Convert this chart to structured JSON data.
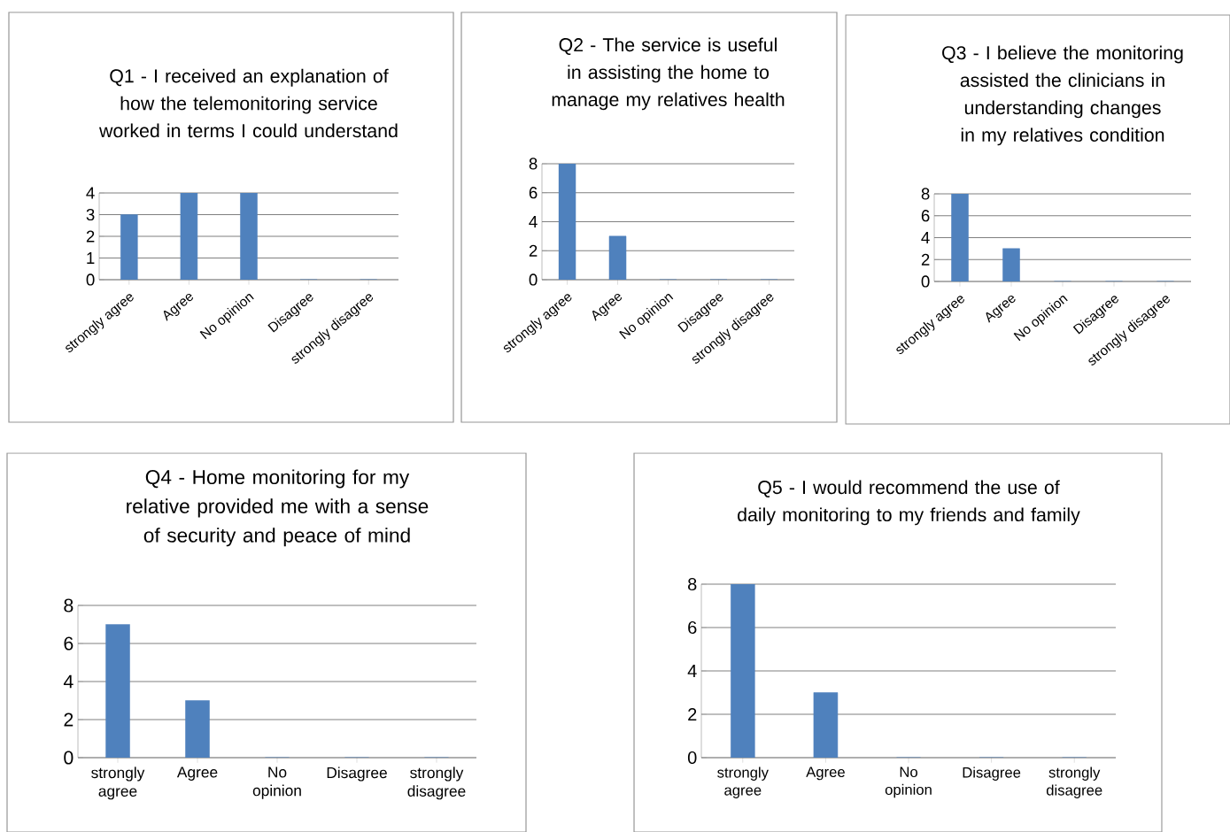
{
  "chart_data": [
    {
      "type": "bar",
      "title": "Q1 - I received an explanation of how the telemonitoring service worked in terms I could understand",
      "categories": [
        "strongly agree",
        "Agree",
        "No opinion",
        "Disagree",
        "strongly disagree"
      ],
      "values": [
        3,
        4,
        4,
        0,
        0
      ],
      "color": "#4f81bd",
      "ylim": [
        0,
        4
      ],
      "yticks": [
        0,
        1,
        2,
        3,
        4
      ],
      "grid": "y"
    },
    {
      "type": "bar",
      "title": "Q2 - The service is useful in assisting the home to manage my relatives health",
      "categories": [
        "strongly agree",
        "Agree",
        "No opinion",
        "Disagree",
        "strongly disagree"
      ],
      "values": [
        8,
        3,
        0,
        0,
        0
      ],
      "color": "#4f81bd",
      "ylim": [
        0,
        8
      ],
      "yticks": [
        0,
        2,
        4,
        6,
        8
      ],
      "grid": "y"
    },
    {
      "type": "bar",
      "title": "Q3 - I believe the monitoring assisted the clinicians in understanding changes in my relatives condition",
      "categories": [
        "strongly agree",
        "Agree",
        "No opinion",
        "Disagree",
        "strongly disagree"
      ],
      "values": [
        8,
        3,
        0,
        0,
        0
      ],
      "color": "#4f81bd",
      "ylim": [
        0,
        8
      ],
      "yticks": [
        0,
        2,
        4,
        6,
        8
      ],
      "grid": "y"
    },
    {
      "type": "bar",
      "title": "Q4 - Home monitoring for my relative provided me with a sense of security and peace of mind",
      "categories": [
        "strongly agree",
        "Agree",
        "No opinion",
        "Disagree",
        "strongly disagree"
      ],
      "values": [
        7,
        3,
        0,
        0,
        0
      ],
      "color": "#4f81bd",
      "ylim": [
        0,
        8
      ],
      "yticks": [
        0,
        2,
        4,
        6,
        8
      ],
      "grid": "y"
    },
    {
      "type": "bar",
      "title": "Q5 - I would recommend the use of daily monitoring to my friends and family",
      "categories": [
        "strongly agree",
        "Agree",
        "No opinion",
        "Disagree",
        "strongly disagree"
      ],
      "values": [
        8,
        3,
        0,
        0,
        0
      ],
      "color": "#4f81bd",
      "ylim": [
        0,
        8
      ],
      "yticks": [
        0,
        2,
        4,
        6,
        8
      ],
      "grid": "y"
    }
  ]
}
